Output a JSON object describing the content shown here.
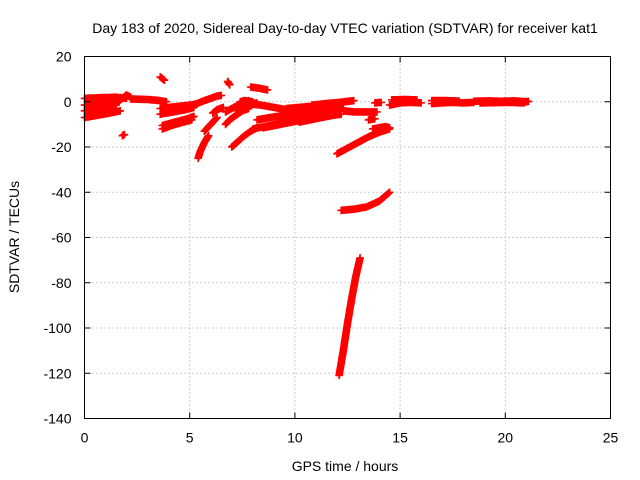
{
  "chart_data": {
    "type": "scatter",
    "title": "Day 183 of 2020, Sidereal Day-to-day VTEC variation (SDTVAR) for receiver kat1",
    "xlabel": "GPS time / hours",
    "ylabel": "SDTVAR / TECUs",
    "xlim": [
      0,
      25
    ],
    "ylim": [
      -140,
      20
    ],
    "xticks": [
      "0",
      "5",
      "10",
      "15",
      "20",
      "25"
    ],
    "yticks": [
      "20",
      "0",
      "-20",
      "-40",
      "-60",
      "-80",
      "-100",
      "-120",
      "-140"
    ],
    "grid": true,
    "marker": "plus",
    "color": "#ff0000",
    "segments": [
      [
        [
          0.0,
          1.5
        ],
        [
          0.8,
          1.8
        ],
        [
          1.5,
          2.0
        ],
        [
          2.0,
          1.5
        ]
      ],
      [
        [
          0.0,
          -1.5
        ],
        [
          0.6,
          -1.0
        ],
        [
          1.2,
          -0.5
        ],
        [
          1.6,
          0.0
        ]
      ],
      [
        [
          0.0,
          -4.0
        ],
        [
          0.5,
          -3.2
        ],
        [
          1.0,
          -2.2
        ],
        [
          1.5,
          -1.5
        ]
      ],
      [
        [
          0.0,
          -7.0
        ],
        [
          0.6,
          -6.0
        ],
        [
          1.2,
          -5.0
        ],
        [
          1.7,
          -4.0
        ]
      ],
      [
        [
          1.5,
          -0.5
        ],
        [
          1.8,
          1.5
        ],
        [
          2.0,
          3.0
        ],
        [
          2.2,
          2.0
        ]
      ],
      [
        [
          2.2,
          1.2
        ],
        [
          3.0,
          1.0
        ],
        [
          3.5,
          0.6
        ],
        [
          3.9,
          0.0
        ]
      ],
      [
        [
          1.8,
          -15.0
        ],
        [
          1.9,
          -14.5
        ]
      ],
      [
        [
          3.6,
          11.0
        ],
        [
          3.8,
          9.5
        ]
      ],
      [
        [
          3.6,
          -3.0
        ],
        [
          4.0,
          -2.5
        ],
        [
          4.5,
          -2.0
        ],
        [
          5.0,
          -1.5
        ],
        [
          5.3,
          -1.0
        ]
      ],
      [
        [
          3.6,
          -5.5
        ],
        [
          4.2,
          -4.5
        ],
        [
          4.8,
          -3.5
        ],
        [
          5.2,
          -2.5
        ]
      ],
      [
        [
          3.7,
          -10.5
        ],
        [
          4.3,
          -9.0
        ],
        [
          4.9,
          -7.5
        ],
        [
          5.2,
          -6.5
        ]
      ],
      [
        [
          3.7,
          -12.0
        ],
        [
          4.3,
          -10.0
        ],
        [
          4.9,
          -8.5
        ],
        [
          5.1,
          -8.0
        ]
      ],
      [
        [
          5.3,
          -1.0
        ],
        [
          5.7,
          0.5
        ],
        [
          6.0,
          1.5
        ],
        [
          6.3,
          2.5
        ],
        [
          6.5,
          2.8
        ]
      ],
      [
        [
          5.4,
          -25.0
        ],
        [
          5.5,
          -22.0
        ],
        [
          5.7,
          -18.0
        ],
        [
          5.9,
          -15.0
        ]
      ],
      [
        [
          5.7,
          -13.0
        ],
        [
          5.9,
          -11.0
        ],
        [
          6.1,
          -9.0
        ],
        [
          6.3,
          -7.0
        ]
      ],
      [
        [
          6.1,
          -5.0
        ],
        [
          6.3,
          -3.5
        ],
        [
          6.6,
          -2.5
        ]
      ],
      [
        [
          6.8,
          9.0
        ],
        [
          6.9,
          7.5
        ]
      ],
      [
        [
          6.7,
          -4.5
        ],
        [
          7.0,
          -3.0
        ],
        [
          7.3,
          -1.5
        ],
        [
          7.6,
          -0.5
        ],
        [
          7.8,
          0.5
        ]
      ],
      [
        [
          6.7,
          -10.0
        ],
        [
          6.9,
          -8.0
        ],
        [
          7.2,
          -6.0
        ],
        [
          7.5,
          -4.0
        ],
        [
          7.8,
          -3.0
        ]
      ],
      [
        [
          7.0,
          -20.0
        ],
        [
          7.3,
          -17.5
        ],
        [
          7.6,
          -15.0
        ],
        [
          7.9,
          -13.0
        ],
        [
          8.2,
          -11.5
        ]
      ],
      [
        [
          7.3,
          -4.0
        ],
        [
          7.6,
          -2.5
        ],
        [
          7.9,
          -1.0
        ],
        [
          8.2,
          -0.5
        ]
      ],
      [
        [
          7.9,
          6.5
        ],
        [
          8.3,
          6.0
        ],
        [
          8.7,
          5.2
        ]
      ],
      [
        [
          7.4,
          0.0
        ],
        [
          7.6,
          0.5
        ],
        [
          8.0,
          0.0
        ]
      ],
      [
        [
          7.9,
          -1.0
        ],
        [
          8.4,
          -1.5
        ],
        [
          9.0,
          -2.5
        ],
        [
          9.6,
          -3.5
        ],
        [
          10.0,
          -4.0
        ]
      ],
      [
        [
          8.2,
          -8.0
        ],
        [
          8.8,
          -7.0
        ],
        [
          9.5,
          -6.0
        ],
        [
          10.2,
          -5.0
        ],
        [
          10.8,
          -4.0
        ]
      ],
      [
        [
          8.0,
          -12.0
        ],
        [
          8.8,
          -10.5
        ],
        [
          9.6,
          -9.0
        ],
        [
          10.3,
          -7.5
        ],
        [
          10.9,
          -6.5
        ]
      ],
      [
        [
          8.5,
          -11.5
        ],
        [
          9.3,
          -10.0
        ],
        [
          10.1,
          -8.5
        ],
        [
          10.7,
          -7.5
        ]
      ],
      [
        [
          9.6,
          -3.0
        ],
        [
          10.2,
          -2.5
        ],
        [
          10.8,
          -2.0
        ],
        [
          11.3,
          -1.5
        ]
      ],
      [
        [
          10.0,
          -5.5
        ],
        [
          10.8,
          -4.5
        ],
        [
          11.5,
          -3.5
        ],
        [
          12.3,
          -2.8
        ]
      ],
      [
        [
          10.2,
          -9.0
        ],
        [
          11.0,
          -7.5
        ],
        [
          11.8,
          -6.0
        ],
        [
          12.2,
          -5.5
        ]
      ],
      [
        [
          10.8,
          -1.5
        ],
        [
          11.5,
          -0.8
        ],
        [
          12.2,
          -0.2
        ],
        [
          12.8,
          0.5
        ]
      ],
      [
        [
          12.0,
          -23.0
        ],
        [
          12.5,
          -20.5
        ],
        [
          13.0,
          -18.0
        ],
        [
          13.5,
          -15.5
        ],
        [
          14.0,
          -13.5
        ],
        [
          14.5,
          -12.0
        ]
      ],
      [
        [
          12.2,
          -48.0
        ],
        [
          12.8,
          -47.5
        ],
        [
          13.4,
          -46.5
        ],
        [
          14.0,
          -44.0
        ],
        [
          14.5,
          -40.0
        ]
      ],
      [
        [
          12.1,
          -121.0
        ],
        [
          12.3,
          -110.0
        ],
        [
          12.5,
          -98.0
        ],
        [
          12.7,
          -87.0
        ],
        [
          12.9,
          -77.0
        ],
        [
          13.1,
          -69.0
        ]
      ],
      [
        [
          12.3,
          -4.0
        ],
        [
          12.8,
          -4.5
        ],
        [
          13.3,
          -4.5
        ],
        [
          13.9,
          -4.5
        ]
      ],
      [
        [
          13.7,
          -12.0
        ],
        [
          14.0,
          -11.5
        ],
        [
          14.3,
          -11.0
        ],
        [
          14.5,
          -11.5
        ]
      ],
      [
        [
          13.5,
          -8.0
        ],
        [
          13.8,
          -7.5
        ]
      ],
      [
        [
          13.8,
          -0.5
        ],
        [
          14.1,
          -0.3
        ]
      ],
      [
        [
          14.5,
          -1.5
        ],
        [
          15.0,
          -0.5
        ],
        [
          15.5,
          -0.3
        ],
        [
          16.0,
          -0.5
        ]
      ],
      [
        [
          14.6,
          0.8
        ],
        [
          15.2,
          1.0
        ],
        [
          15.8,
          0.8
        ]
      ],
      [
        [
          16.5,
          -0.8
        ],
        [
          17.0,
          -0.5
        ],
        [
          17.5,
          -0.3
        ],
        [
          18.0,
          -0.5
        ],
        [
          18.5,
          -0.3
        ]
      ],
      [
        [
          16.5,
          0.5
        ],
        [
          17.2,
          0.5
        ],
        [
          17.8,
          0.3
        ]
      ],
      [
        [
          18.5,
          0.2
        ],
        [
          19.2,
          0.4
        ],
        [
          19.8,
          0.2
        ],
        [
          20.4,
          0.4
        ],
        [
          21.0,
          0.0
        ],
        [
          21.1,
          0.2
        ]
      ],
      [
        [
          18.8,
          -0.5
        ],
        [
          19.5,
          -0.4
        ],
        [
          20.2,
          -0.3
        ],
        [
          20.9,
          -0.5
        ]
      ]
    ]
  }
}
